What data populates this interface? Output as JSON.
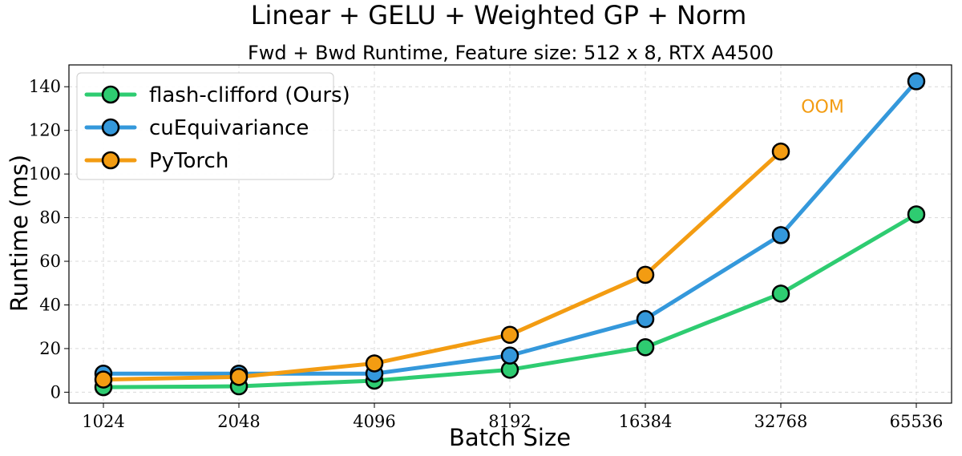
{
  "chart_data": {
    "type": "line",
    "title": "Linear + GELU + Weighted GP + Norm",
    "subtitle": "Fwd + Bwd Runtime, Feature size: 512 x 8, RTX A4500",
    "xlabel": "Batch Size",
    "ylabel": "Runtime (ms)",
    "categories": [
      "1024",
      "2048",
      "4096",
      "8192",
      "16384",
      "32768",
      "65536"
    ],
    "ylim": [
      -5,
      150
    ],
    "yticks": [
      0,
      20,
      40,
      60,
      80,
      100,
      120,
      140
    ],
    "grid": true,
    "legend_position": "top-left",
    "series": [
      {
        "name": "flash-clifford (Ours)",
        "color": "#2ecc71",
        "values": [
          2.3,
          2.7,
          5.3,
          10.3,
          20.6,
          45.2,
          81.5
        ]
      },
      {
        "name": "cuEquivariance",
        "color": "#3498db",
        "values": [
          8.5,
          8.5,
          8.5,
          16.8,
          33.5,
          72.0,
          142.5
        ]
      },
      {
        "name": "PyTorch",
        "color": "#f39c12",
        "values": [
          5.8,
          7.0,
          13.2,
          26.3,
          53.8,
          110.3,
          null
        ]
      }
    ],
    "annotations": [
      {
        "text": "OOM",
        "color": "#f39c12",
        "x_category": "32768",
        "y": 131
      }
    ]
  }
}
